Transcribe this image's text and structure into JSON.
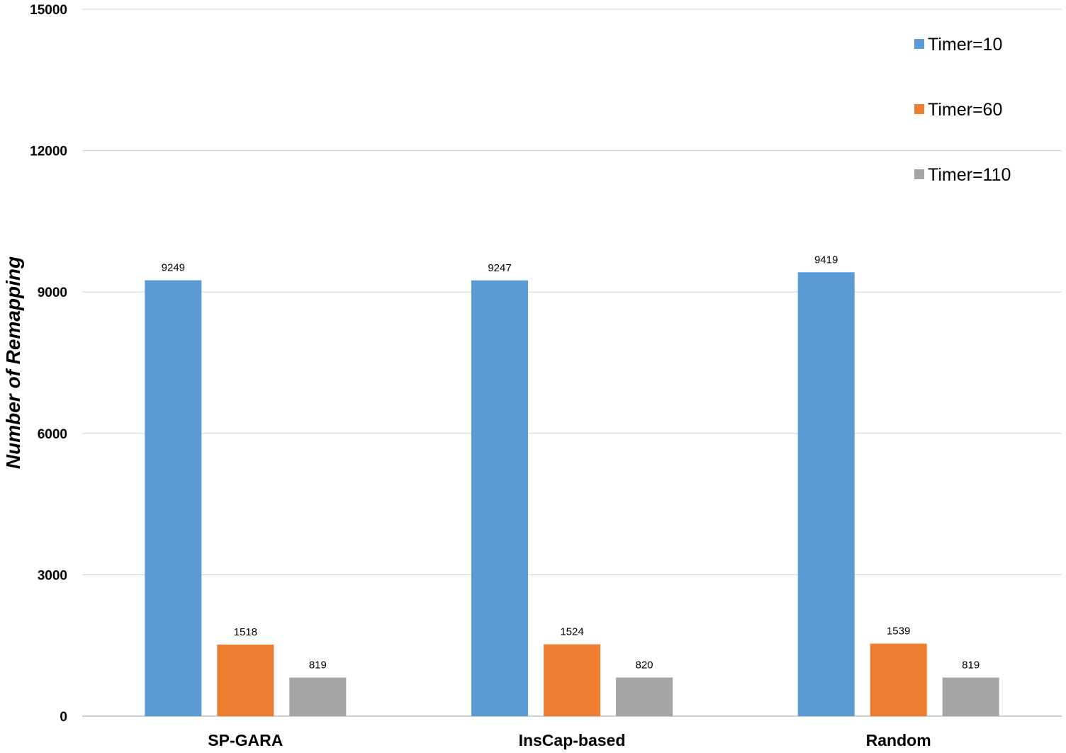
{
  "chart_data": {
    "type": "bar",
    "title": "",
    "xlabel": "",
    "ylabel": "Number of Remapping",
    "ylim": [
      0,
      15000
    ],
    "yticks": [
      0,
      3000,
      6000,
      9000,
      12000,
      15000
    ],
    "grid": true,
    "legend_position": "top-right",
    "categories": [
      "SP-GARA",
      "InsCap-based",
      "Random"
    ],
    "series": [
      {
        "name": "Timer=10",
        "color": "#5b9bd5",
        "values": [
          9249,
          9247,
          9419
        ]
      },
      {
        "name": "Timer=60",
        "color": "#ed7d31",
        "values": [
          1518,
          1524,
          1539
        ]
      },
      {
        "name": "Timer=110",
        "color": "#a5a5a5",
        "values": [
          819,
          820,
          819
        ]
      }
    ]
  }
}
